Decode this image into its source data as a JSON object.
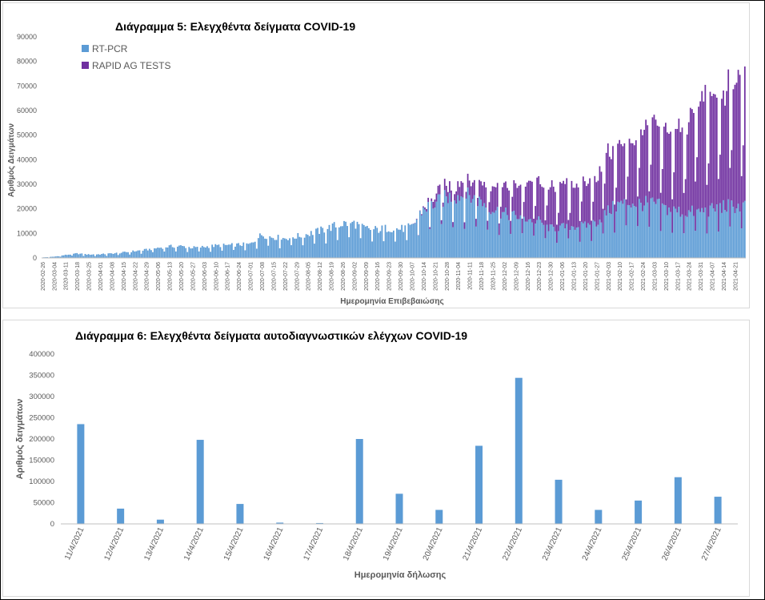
{
  "chart_data": [
    {
      "type": "bar",
      "stacked": true,
      "title": "Διάγραμμα 5: Ελεγχθέντα δείγματα COVID-19",
      "xlabel": "Ημερομηνία Επιβεβαιώσης",
      "ylabel": "Αριθμός Δειγμάτων",
      "ylim": [
        0,
        90000
      ],
      "yticks": [
        "0",
        "10000",
        "20000",
        "30000",
        "40000",
        "50000",
        "60000",
        "70000",
        "80000",
        "90000"
      ],
      "grid": false,
      "legend": "top-left",
      "x_tick_labels": [
        "2020-02-26",
        "2020-03-04",
        "2020-03-11",
        "2020-03-18",
        "2020-03-25",
        "2020-04-01",
        "2020-04-08",
        "2020-04-15",
        "2020-04-22",
        "2020-04-29",
        "2020-05-06",
        "2020-05-13",
        "2020-05-20",
        "2020-05-27",
        "2020-06-03",
        "2020-06-10",
        "2020-06-17",
        "2020-06-24",
        "2020-07-01",
        "2020-07-08",
        "2020-07-15",
        "2020-07-22",
        "2020-07-29",
        "2020-08-05",
        "2020-08-12",
        "2020-08-19",
        "2020-08-26",
        "2020-09-02",
        "2020-09-09",
        "2020-09-16",
        "2020-09-23",
        "2020-09-30",
        "2020-10-07",
        "2020-10-14",
        "2020-10-21",
        "2020-10-28",
        "2020-11-04",
        "2020-11-11",
        "2020-11-18",
        "2020-11-25",
        "2020-12-02",
        "2020-12-09",
        "2020-12-16",
        "2020-12-23",
        "2020-12-30",
        "2021-01-06",
        "2021-01-13",
        "2021-01-20",
        "2021-01-27",
        "2021-02-03",
        "2021-02-10",
        "2021-02-17",
        "2021-02-24",
        "2021-03-03",
        "2021-03-10",
        "2021-03-17",
        "2021-03-24",
        "2021-03-31",
        "2021-04-07",
        "2021-04-14",
        "2021-04-21"
      ],
      "series": [
        {
          "name": "RT-PCR",
          "color": "#5b9bd5",
          "weekly_values": [
            200,
            500,
            1200,
            1800,
            1400,
            1500,
            1800,
            2200,
            2800,
            3300,
            4100,
            4700,
            4800,
            4200,
            4500,
            5000,
            5200,
            5400,
            5600,
            9500,
            8500,
            8000,
            8700,
            9800,
            11000,
            12500,
            14000,
            14200,
            12000,
            11500,
            12200,
            11800,
            12500,
            20000,
            22000,
            24500,
            25500,
            25000,
            23000,
            20000,
            18000,
            17000,
            16000,
            15000,
            12000,
            12500,
            13000,
            13000,
            14500,
            19000,
            22000,
            22500,
            22000,
            22000,
            20000,
            19000,
            18500,
            19000,
            19500,
            21000,
            21000
          ]
        },
        {
          "name": "RAPID AG TESTS",
          "color": "#7030a0",
          "weekly_values": [
            0,
            0,
            0,
            0,
            0,
            0,
            0,
            0,
            0,
            0,
            0,
            0,
            0,
            0,
            0,
            0,
            0,
            0,
            0,
            0,
            0,
            0,
            0,
            0,
            0,
            0,
            0,
            0,
            0,
            0,
            0,
            0,
            0,
            500,
            3000,
            4500,
            5500,
            6000,
            7500,
            10000,
            11500,
            13000,
            15000,
            16000,
            16500,
            17000,
            17000,
            17500,
            18500,
            24000,
            24000,
            25000,
            29000,
            33000,
            31000,
            32000,
            38000,
            46000,
            48000,
            46000,
            52000
          ]
        }
      ]
    },
    {
      "type": "bar",
      "title": "Διάγραμμα 6: Ελεγχθέντα δείγματα αυτοδιαγνωστικών ελέγχων COVID-19",
      "xlabel": "Ημερομηνία δήλωσης",
      "ylabel": "Αριθμός δειγμάτων",
      "ylim": [
        0,
        400000
      ],
      "yticks": [
        "0",
        "50000",
        "100000",
        "150000",
        "200000",
        "250000",
        "300000",
        "350000",
        "400000"
      ],
      "grid": false,
      "categories": [
        "11/4/2021",
        "12/4/2021",
        "13/4/2021",
        "14/4/2021",
        "15/4/2021",
        "16/4/2021",
        "17/4/2021",
        "18/4/2021",
        "19/4/2021",
        "20/4/2021",
        "21/4/2021",
        "22/4/2021",
        "23/4/2021",
        "24/4/2021",
        "25/4/2021",
        "26/4/2021",
        "27/4/2021"
      ],
      "values": [
        235000,
        36000,
        10000,
        198000,
        47000,
        3000,
        2000,
        200000,
        71000,
        33000,
        184000,
        344000,
        104000,
        33000,
        55000,
        110000,
        64000
      ],
      "color": "#5b9bd5"
    }
  ]
}
